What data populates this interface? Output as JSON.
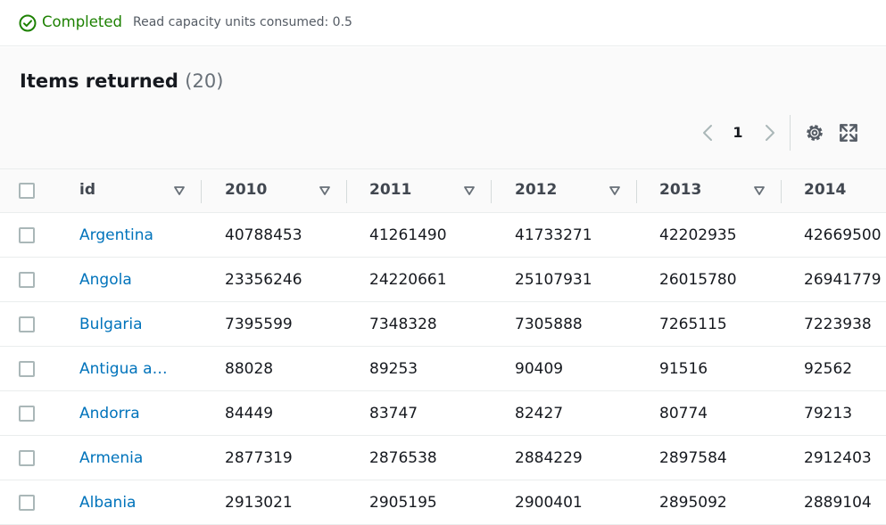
{
  "status": {
    "label": "Completed",
    "detail": "Read capacity units consumed: 0.5",
    "color": "#1d8102",
    "icon": "check-circle-icon"
  },
  "panel": {
    "title": "Items returned",
    "count": "(20)"
  },
  "pagination": {
    "current_page": "1",
    "prev_icon": "chevron-left-icon",
    "next_icon": "chevron-right-icon"
  },
  "toolbar": {
    "settings_icon": "gear-icon",
    "fullscreen_icon": "expand-icon"
  },
  "table": {
    "columns": [
      "id",
      "2010",
      "2011",
      "2012",
      "2013",
      "2014"
    ],
    "rows": [
      [
        "Argentina",
        "40788453",
        "41261490",
        "41733271",
        "42202935",
        "42669500"
      ],
      [
        "Angola",
        "23356246",
        "24220661",
        "25107931",
        "26015780",
        "26941779"
      ],
      [
        "Bulgaria",
        "7395599",
        "7348328",
        "7305888",
        "7265115",
        "7223938"
      ],
      [
        "Antigua an…",
        "88028",
        "89253",
        "90409",
        "91516",
        "92562"
      ],
      [
        "Andorra",
        "84449",
        "83747",
        "82427",
        "80774",
        "79213"
      ],
      [
        "Armenia",
        "2877319",
        "2876538",
        "2884229",
        "2897584",
        "2912403"
      ],
      [
        "Albania",
        "2913021",
        "2905195",
        "2900401",
        "2895092",
        "2889104"
      ]
    ]
  },
  "colors": {
    "link": "#0073bb",
    "success": "#1d8102",
    "border": "#eaeded"
  }
}
